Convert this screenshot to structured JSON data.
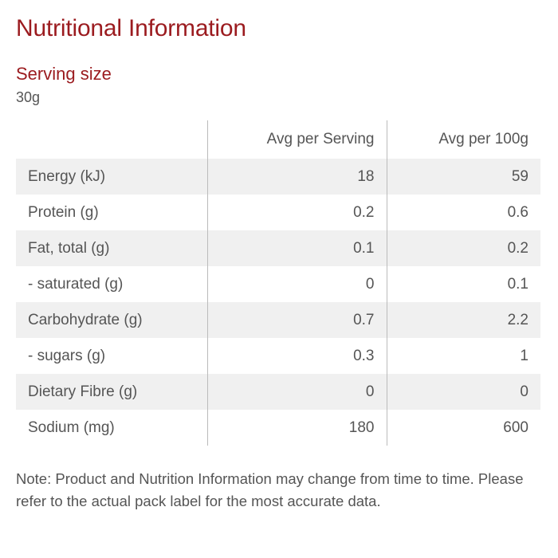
{
  "title": "Nutritional Information",
  "serving": {
    "label": "Serving size",
    "value": "30g"
  },
  "table": {
    "headers": [
      "",
      "Avg per Serving",
      "Avg per 100g"
    ],
    "rows": [
      {
        "name": "Energy (kJ)",
        "per_serving": "18",
        "per_100g": "59"
      },
      {
        "name": "Protein (g)",
        "per_serving": "0.2",
        "per_100g": "0.6"
      },
      {
        "name": "Fat, total (g)",
        "per_serving": "0.1",
        "per_100g": "0.2"
      },
      {
        "name": "- saturated (g)",
        "per_serving": "0",
        "per_100g": "0.1"
      },
      {
        "name": "Carbohydrate (g)",
        "per_serving": "0.7",
        "per_100g": "2.2"
      },
      {
        "name": "- sugars (g)",
        "per_serving": "0.3",
        "per_100g": "1"
      },
      {
        "name": "Dietary Fibre (g)",
        "per_serving": "0",
        "per_100g": "0"
      },
      {
        "name": "Sodium (mg)",
        "per_serving": "180",
        "per_100g": "600"
      }
    ]
  },
  "note": "Note: Product and Nutrition Information may change from time to time. Please refer to the actual pack label for the most accurate data.",
  "colors": {
    "accent": "#9b1b1f",
    "text": "#555555",
    "row_shade": "#f0f0f0",
    "divider": "#bbbbbb"
  }
}
